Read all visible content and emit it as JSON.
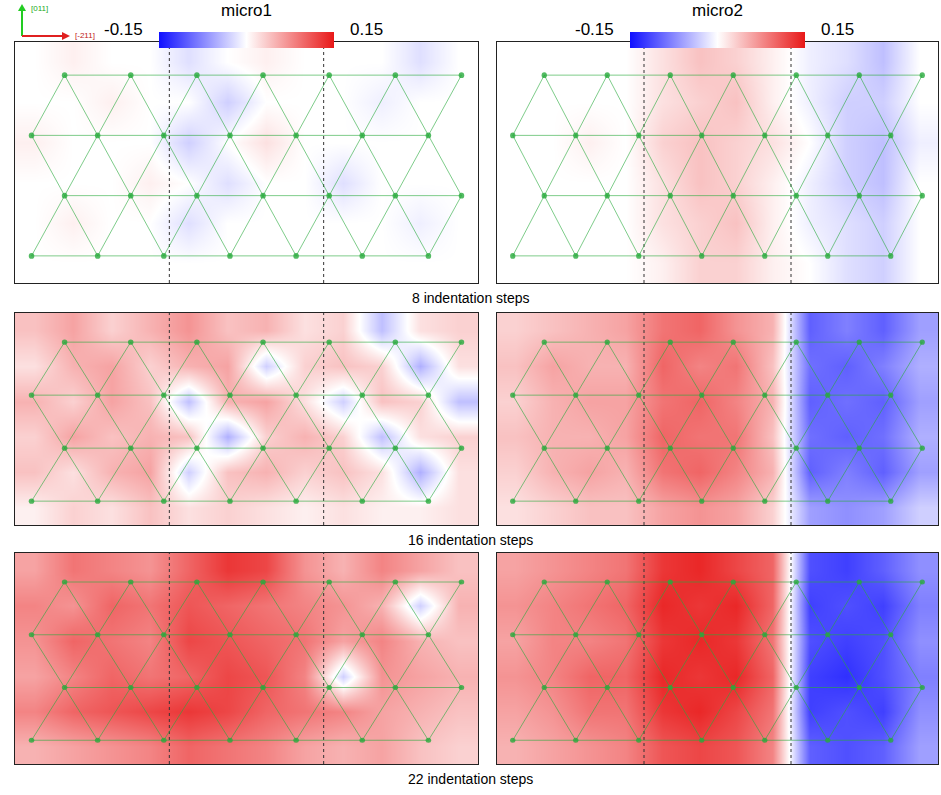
{
  "chart_data": {
    "type": "heatmap",
    "tick_labels": false,
    "axis_labels": {
      "vertical": "[011]",
      "horizontal": "[-211]"
    },
    "columns": [
      {
        "title": "micro1",
        "colorbar": {
          "range": [
            -0.15,
            0.15
          ],
          "ticks": [
            -0.15,
            0.15
          ],
          "colors": [
            "#1010ff",
            "#ffffff",
            "#e81818"
          ]
        }
      },
      {
        "title": "micro2",
        "colorbar": {
          "range": [
            -0.15,
            0.15
          ],
          "ticks": [
            -0.15,
            0.15
          ],
          "colors": [
            "#1010ff",
            "#ffffff",
            "#e81818"
          ]
        }
      }
    ],
    "rows": [
      {
        "title": "8 indentation steps",
        "cells": [
          [
            [
              0,
              0.01,
              0,
              0,
              -0.02,
              0,
              0.01,
              0,
              0,
              0,
              -0.02,
              0
            ],
            [
              0,
              0,
              0.01,
              0,
              0,
              -0.03,
              0,
              0,
              0,
              -0.01,
              0,
              0
            ],
            [
              0.01,
              0,
              0,
              0,
              -0.03,
              0,
              0.02,
              0,
              0,
              0,
              0,
              0
            ],
            [
              0,
              0,
              0,
              0.01,
              0,
              -0.02,
              0,
              0,
              -0.02,
              0,
              0,
              0
            ],
            [
              0,
              0.01,
              0,
              0,
              -0.02,
              0,
              0,
              0,
              0,
              0,
              -0.01,
              0
            ],
            [
              0,
              0,
              0,
              0,
              0,
              0,
              0,
              0,
              0,
              0,
              0,
              0
            ]
          ],
          [
            [
              0,
              0,
              0,
              0,
              0.02,
              0.04,
              0.03,
              0.01,
              -0.01,
              -0.02,
              -0.04,
              0
            ],
            [
              0,
              0,
              0,
              0,
              0.02,
              0.03,
              0.04,
              0.01,
              -0.01,
              -0.03,
              -0.03,
              0
            ],
            [
              0,
              0,
              0.01,
              0,
              0.03,
              0.04,
              0.03,
              0.02,
              0,
              -0.03,
              -0.04,
              -0.01
            ],
            [
              0,
              0,
              0,
              0,
              0.02,
              0.04,
              0.03,
              0.01,
              -0.01,
              -0.03,
              -0.04,
              0
            ],
            [
              0,
              0,
              0,
              0,
              0.02,
              0.03,
              0.04,
              0.01,
              -0.01,
              -0.02,
              -0.03,
              0
            ],
            [
              0,
              0,
              0,
              0,
              0.01,
              0.03,
              0.03,
              0.01,
              0,
              -0.02,
              -0.03,
              0
            ]
          ]
        ]
      },
      {
        "title": "16 indentation steps",
        "cells": [
          [
            [
              0.04,
              0.06,
              0.03,
              0.05,
              0.07,
              0.04,
              0.05,
              0.02,
              0.03,
              -0.04,
              0.02,
              0.03
            ],
            [
              0.02,
              0.05,
              0.06,
              0.03,
              0.05,
              0.06,
              -0.03,
              0.03,
              0.04,
              0.03,
              -0.05,
              0.02
            ],
            [
              0.05,
              0.03,
              0.06,
              0.04,
              -0.04,
              0.05,
              0.06,
              0.02,
              -0.03,
              0.04,
              0.03,
              -0.04
            ],
            [
              0.03,
              0.06,
              0.04,
              0.05,
              0.04,
              -0.05,
              0.03,
              0.05,
              0.03,
              -0.04,
              0.02,
              0.03
            ],
            [
              0.04,
              0.02,
              0.05,
              0.06,
              -0.03,
              0.04,
              0.05,
              0.03,
              0.04,
              0.02,
              -0.05,
              0.02
            ],
            [
              0.01,
              0.03,
              0.02,
              0.04,
              0.02,
              0.03,
              0.02,
              0.01,
              0.02,
              0.01,
              0.01,
              0.02
            ]
          ],
          [
            [
              0.03,
              0.04,
              0.05,
              0.06,
              0.09,
              0.1,
              0.07,
              0.05,
              -0.1,
              -0.08,
              -0.1,
              -0.06
            ],
            [
              0.04,
              0.06,
              0.05,
              0.05,
              0.1,
              0.08,
              0.09,
              0.04,
              -0.09,
              -0.1,
              -0.08,
              -0.05
            ],
            [
              0.03,
              0.05,
              0.06,
              0.06,
              0.09,
              0.1,
              0.08,
              0.05,
              -0.1,
              -0.09,
              -0.1,
              -0.06
            ],
            [
              0.04,
              0.05,
              0.05,
              0.06,
              0.1,
              0.09,
              0.09,
              0.04,
              -0.09,
              -0.1,
              -0.09,
              -0.05
            ],
            [
              0.03,
              0.05,
              0.06,
              0.05,
              0.09,
              0.1,
              0.08,
              0.05,
              -0.1,
              -0.08,
              -0.1,
              -0.06
            ],
            [
              0.02,
              0.03,
              0.04,
              0.04,
              0.06,
              0.07,
              0.06,
              0.03,
              -0.06,
              -0.07,
              -0.06,
              -0.03
            ]
          ]
        ]
      },
      {
        "title": "22 indentation steps",
        "cells": [
          [
            [
              0.06,
              0.09,
              0.08,
              0.07,
              0.1,
              0.13,
              0.12,
              0.07,
              0.05,
              0.08,
              0.06,
              0.04
            ],
            [
              0.08,
              0.07,
              0.1,
              0.09,
              0.11,
              0.1,
              0.09,
              0.08,
              0.07,
              0.05,
              -0.03,
              0.05
            ],
            [
              0.07,
              0.1,
              0.09,
              0.08,
              0.12,
              0.11,
              0.1,
              0.09,
              0.06,
              0.08,
              0.05,
              0.04
            ],
            [
              0.06,
              0.08,
              0.1,
              0.09,
              0.1,
              0.12,
              0.11,
              0.08,
              -0.03,
              0.07,
              0.06,
              0.05
            ],
            [
              0.08,
              0.1,
              0.11,
              0.12,
              0.13,
              0.12,
              0.1,
              0.09,
              0.08,
              0.06,
              0.05,
              0.04
            ],
            [
              0.05,
              0.06,
              0.07,
              0.08,
              0.1,
              0.09,
              0.08,
              0.06,
              0.05,
              0.06,
              0.04,
              0.03
            ]
          ],
          [
            [
              0.06,
              0.07,
              0.08,
              0.09,
              0.13,
              0.14,
              0.12,
              0.1,
              -0.11,
              -0.12,
              -0.1,
              -0.07
            ],
            [
              0.07,
              0.08,
              0.09,
              0.1,
              0.14,
              0.13,
              0.14,
              0.1,
              -0.12,
              -0.11,
              -0.12,
              -0.08
            ],
            [
              0.06,
              0.08,
              0.08,
              0.09,
              0.13,
              0.14,
              0.13,
              0.09,
              -0.11,
              -0.12,
              -0.11,
              -0.07
            ],
            [
              0.07,
              0.08,
              0.1,
              0.1,
              0.14,
              0.13,
              0.14,
              0.1,
              -0.12,
              -0.13,
              -0.11,
              -0.08
            ],
            [
              0.06,
              0.07,
              0.09,
              0.09,
              0.13,
              0.14,
              0.12,
              0.09,
              -0.12,
              -0.11,
              -0.12,
              -0.07
            ],
            [
              0.05,
              0.06,
              0.07,
              0.08,
              0.11,
              0.12,
              0.11,
              0.08,
              -0.1,
              -0.11,
              -0.1,
              -0.06
            ]
          ]
        ]
      }
    ]
  }
}
